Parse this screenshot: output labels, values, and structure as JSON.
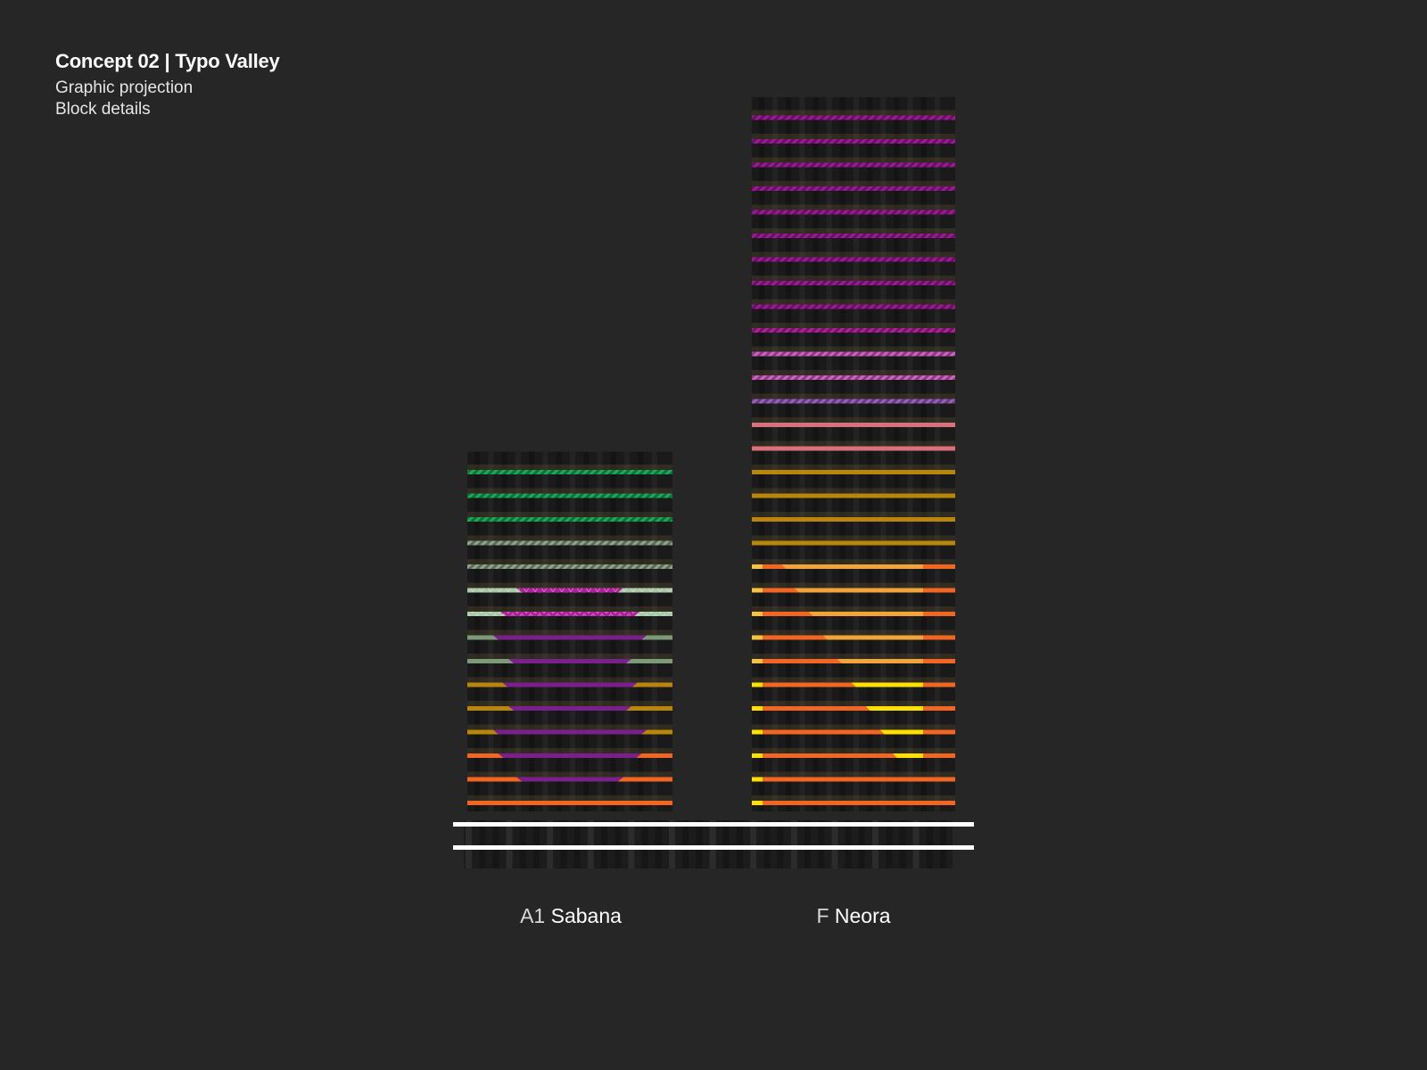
{
  "header": {
    "title": "Concept 02 | Typo Valley",
    "subtitle_1": "Graphic projection",
    "subtitle_2": "Block details"
  },
  "buildings": [
    {
      "code": "A1",
      "name": "Sabana",
      "floors": [
        {
          "type": "solid",
          "color": "#f26522"
        },
        {
          "type": "split",
          "edge": "#f26522",
          "center": "#7a1f8c",
          "w": 0.52
        },
        {
          "type": "split",
          "edge": "#f26522",
          "center": "#7a1f8c",
          "w": 0.7
        },
        {
          "type": "split",
          "edge": "#b8860b",
          "center": "#7a1f8c",
          "w": 0.75
        },
        {
          "type": "split",
          "edge": "#b8860b",
          "center": "#7a1f8c",
          "w": 0.6
        },
        {
          "type": "split",
          "edge": "#b8860b",
          "center": "#7a1f8c",
          "w": 0.66
        },
        {
          "type": "split",
          "edge": "#7c9a78",
          "center": "#7a1f8c",
          "w": 0.6
        },
        {
          "type": "split",
          "edge": "#7c9a78",
          "center": "#7a1f8c",
          "w": 0.75
        },
        {
          "type": "split",
          "edge": "#a9c8a5",
          "center": "#b0209c",
          "w": 0.68,
          "hatch": true
        },
        {
          "type": "split",
          "edge": "#a9c8a5",
          "center": "#b0209c",
          "w": 0.52,
          "hatch": true
        },
        {
          "type": "hatch",
          "color": "#8fa58c"
        },
        {
          "type": "hatch",
          "color": "#8fa58c"
        },
        {
          "type": "hatch",
          "color": "#1aaa5a"
        },
        {
          "type": "hatch",
          "color": "#1aaa5a"
        },
        {
          "type": "hatch",
          "color": "#1aaa5a"
        }
      ]
    },
    {
      "code": "F",
      "name": "Neora",
      "floors": [
        {
          "type": "gradient",
          "cap": "#ffe000",
          "main": "#f26522",
          "accent": "#f26522",
          "pos": 0.5
        },
        {
          "type": "gradient",
          "cap": "#ffe000",
          "main": "#f26522",
          "accent": "#f26522",
          "pos": 0.5
        },
        {
          "type": "gradient",
          "cap": "#ffe000",
          "main": "#f26522",
          "accent": "#ffe000",
          "pos": 0.82
        },
        {
          "type": "gradient",
          "cap": "#ffe000",
          "main": "#f26522",
          "accent": "#ffe000",
          "pos": 0.74
        },
        {
          "type": "gradient",
          "cap": "#ffe000",
          "main": "#f26522",
          "accent": "#ffe000",
          "pos": 0.65
        },
        {
          "type": "gradient",
          "cap": "#ffe000",
          "main": "#f26522",
          "accent": "#ffe000",
          "pos": 0.56
        },
        {
          "type": "gradient",
          "cap": "#f7c240",
          "main": "#f26522",
          "accent": "#f2a33a",
          "pos": 0.47
        },
        {
          "type": "gradient",
          "cap": "#f7c240",
          "main": "#f26522",
          "accent": "#f2a33a",
          "pos": 0.38
        },
        {
          "type": "gradient",
          "cap": "#f7c240",
          "main": "#f26522",
          "accent": "#f2a33a",
          "pos": 0.29
        },
        {
          "type": "gradient",
          "cap": "#f7c240",
          "main": "#f26522",
          "accent": "#f2a33a",
          "pos": 0.2
        },
        {
          "type": "gradient",
          "cap": "#f7c240",
          "main": "#f26522",
          "accent": "#f2a33a",
          "pos": 0.12
        },
        {
          "type": "solid",
          "color": "#b8860b"
        },
        {
          "type": "solid",
          "color": "#b8860b"
        },
        {
          "type": "solid",
          "color": "#b8860b"
        },
        {
          "type": "solid",
          "color": "#b8860b"
        },
        {
          "type": "solid",
          "color": "#d9707a"
        },
        {
          "type": "solid",
          "color": "#d9707a"
        },
        {
          "type": "hatch",
          "color": "#9a5fbf"
        },
        {
          "type": "hatch",
          "color": "#d45fc8"
        },
        {
          "type": "hatch",
          "color": "#d45fc8"
        },
        {
          "type": "hatch",
          "color": "#b0209c"
        },
        {
          "type": "hatch",
          "color": "#a0189a"
        },
        {
          "type": "hatch",
          "color": "#a0189a"
        },
        {
          "type": "hatch",
          "color": "#a0189a"
        },
        {
          "type": "hatch",
          "color": "#a0189a"
        },
        {
          "type": "hatch",
          "color": "#a0189a"
        },
        {
          "type": "hatch",
          "color": "#a0189a"
        },
        {
          "type": "hatch",
          "color": "#a0189a"
        },
        {
          "type": "hatch",
          "color": "#a0189a"
        },
        {
          "type": "hatch",
          "color": "#a0189a"
        }
      ]
    }
  ],
  "colors": {
    "background": "#262626",
    "facade": "#1a1a1a",
    "ground_line": "#ffffff"
  }
}
